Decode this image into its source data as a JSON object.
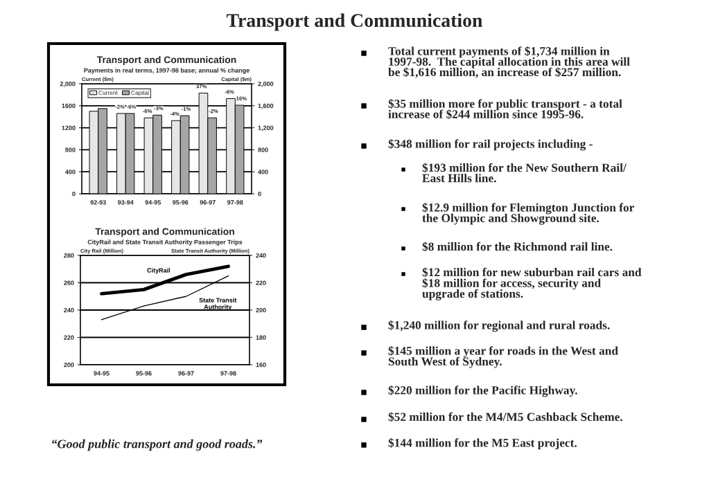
{
  "chart_data": [
    {
      "type": "bar",
      "title": "Transport and Communication",
      "subtitle": "Payments in real terms, 1997-98 base; annual % change",
      "ylabel": "Current ($m)",
      "y2label": "Capital ($m)",
      "categories": [
        "92-93",
        "93-94",
        "94-95",
        "95-96",
        "96-97",
        "97-98"
      ],
      "series": [
        {
          "name": "Current",
          "color": "#e6e6e6",
          "values": [
            1500,
            1460,
            1380,
            1330,
            1830,
            1730
          ]
        },
        {
          "name": "Capital",
          "color": "#a6a6a6",
          "axis": "y2",
          "values": [
            1550,
            1460,
            1430,
            1420,
            1380,
            1610
          ]
        }
      ],
      "annotations": [
        {
          "text": "-2%",
          "x": "93-94",
          "y": 1460
        },
        {
          "text": "-6%",
          "x": "94-95",
          "y": 1380
        },
        {
          "text": "-4%",
          "x": "95-96",
          "y": 1330
        },
        {
          "text": "37%",
          "x": "96-97",
          "y": 1830
        },
        {
          "text": "-6%",
          "x": "97-98",
          "y": 1730
        },
        {
          "text": "-6%",
          "x": "93-94",
          "y": 1460
        },
        {
          "text": "-3%",
          "x": "94-95",
          "y": 1430
        },
        {
          "text": "-1%",
          "x": "95-96",
          "y": 1420
        },
        {
          "text": "-2%",
          "x": "96-97",
          "y": 1380
        },
        {
          "text": "16%",
          "x": "97-98",
          "y": 1610
        }
      ],
      "ylim": [
        0,
        2000
      ],
      "yticks": [
        0,
        400,
        800,
        1200,
        1600,
        {
          "value": 2000,
          "label": "2,000"
        }
      ],
      "y2lim": [
        0,
        2000
      ],
      "y2ticks": [
        0,
        400,
        800,
        {
          "value": 1200,
          "label": "1,200"
        },
        {
          "value": 1600,
          "label": "1,600"
        },
        {
          "value": 2000,
          "label": "2,000"
        }
      ],
      "grid": "y",
      "legend": "top left"
    },
    {
      "type": "line",
      "title": "Transport and Communication",
      "subtitle": "CityRail and State Transit Authority Passenger Trips",
      "ylabel": "City Rail (Million)",
      "y2label": "State Transit Authority (Million)",
      "categories": [
        "94-95",
        "95-96",
        "96-97",
        "97-98"
      ],
      "series": [
        {
          "name": "CityRail",
          "color": "#000000",
          "values": [
            252,
            255,
            266,
            272
          ]
        },
        {
          "name": "State Transit Authority",
          "color": "#000000",
          "axis": "y2",
          "values": [
            193,
            203,
            210,
            225
          ]
        }
      ],
      "ylim": [
        200,
        280
      ],
      "yticks": [
        200,
        220,
        240,
        260,
        280
      ],
      "y2lim": [
        160,
        240
      ],
      "y2ticks": [
        160,
        180,
        200,
        220,
        240
      ],
      "grid": "y"
    },
    {
      "type": "other",
      "title": "Transport and Communication",
      "annotations": [
        "Total current payments of $1,734 million in\n1997-98.  The capital allocation in this area will\nbe $1,616 million, an increase of $257 million.",
        "$35 million more for public transport - a total\nincrease of $244 million since 1995-96.",
        "$348 million for rail projects including -",
        "$193 million for the New Southern Rail/\nEast Hills line.",
        "$12.9 million for Flemington Junction for\nthe Olympic and Showground site.",
        "$8 million for the Richmond rail line.",
        "$12 million for new suburban rail cars and\n$18 million for access, security and\nupgrade of stations.",
        "$1,240 million for regional and rural roads.",
        "$145 million a year for roads in the West and\nSouth West of Sydney.",
        "$220 million for the Pacific Highway.",
        "$52 million for the M4/M5 Cashback Scheme.",
        "$144 million for the M5 East project.",
        "“Good public transport and good roads.”"
      ]
    }
  ]
}
